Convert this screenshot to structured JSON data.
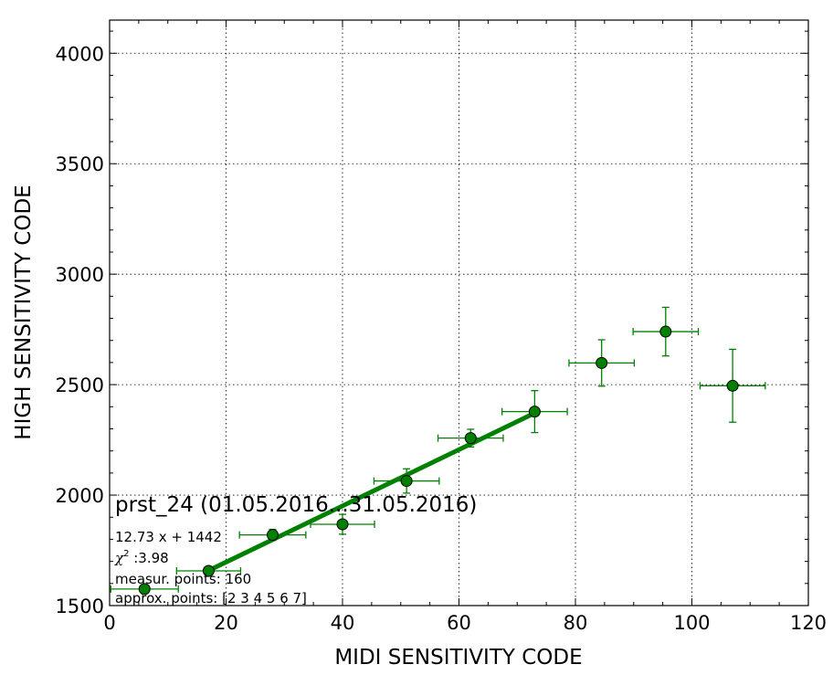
{
  "chart_data": {
    "type": "scatter",
    "xlabel": "MIDI SENSITIVITY CODE",
    "ylabel": "HIGH SENSITIVITY CODE",
    "xlim": [
      0,
      120
    ],
    "ylim": [
      1500,
      4150
    ],
    "x_ticks": [
      0,
      20,
      40,
      60,
      80,
      100,
      120
    ],
    "y_ticks": [
      1500,
      2000,
      2500,
      3000,
      3500,
      4000
    ],
    "grid": true,
    "colors": {
      "series": "#008000",
      "marker_fill": "#008000",
      "marker_edge": "#000000"
    },
    "points": [
      {
        "x": 6,
        "y": 1575,
        "xerr": 5.8,
        "yerr": 20
      },
      {
        "x": 17,
        "y": 1657,
        "xerr": 5.5,
        "yerr": 15
      },
      {
        "x": 28,
        "y": 1820,
        "xerr": 5.7,
        "yerr": 25
      },
      {
        "x": 40,
        "y": 1868,
        "xerr": 5.5,
        "yerr": 45
      },
      {
        "x": 51,
        "y": 2064,
        "xerr": 5.6,
        "yerr": 55
      },
      {
        "x": 62,
        "y": 2258,
        "xerr": 5.6,
        "yerr": 40
      },
      {
        "x": 73,
        "y": 2378,
        "xerr": 5.6,
        "yerr": 95
      },
      {
        "x": 84.5,
        "y": 2598,
        "xerr": 5.6,
        "yerr": 105
      },
      {
        "x": 95.5,
        "y": 2740,
        "xerr": 5.6,
        "yerr": 110
      },
      {
        "x": 107,
        "y": 2495,
        "xerr": 5.6,
        "yerr": 165
      }
    ],
    "fit": {
      "slope": 12.73,
      "intercept": 1442,
      "x_range": [
        17,
        73
      ]
    },
    "annotations": {
      "title": "prst_24 (01.05.2016...31.05.2016)",
      "equation": "12.73 x + 1442",
      "chi_symbol": "χ",
      "chi_exp": "2",
      "chi_value": " :3.98",
      "measur": "measur. points: 160",
      "approx": "approx. points: [2 3 4 5 6 7]"
    }
  }
}
